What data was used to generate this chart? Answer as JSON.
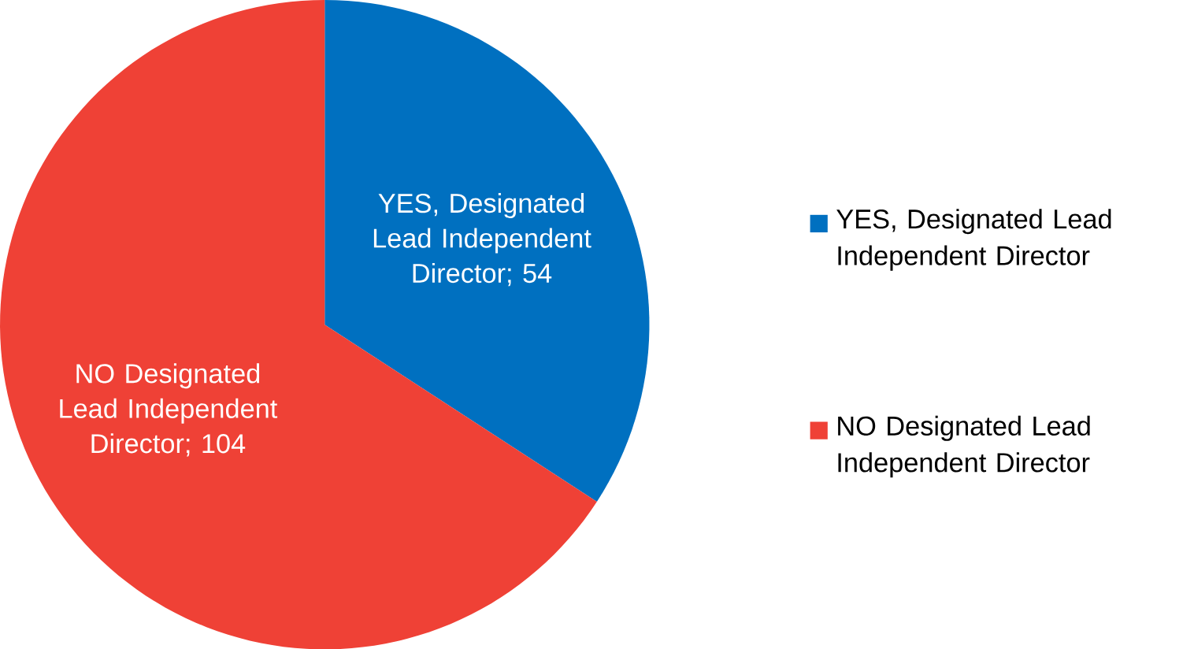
{
  "chart_data": {
    "type": "pie",
    "categories": [
      "YES, Designated Lead Independent Director",
      "NO Designated Lead Independent Director"
    ],
    "values": [
      54,
      104
    ],
    "colors": [
      "#0070c0",
      "#ef4136"
    ],
    "value_labels": [
      "YES, Designated Lead Independent Director; 54",
      "NO Designated Lead Independent Director; 104"
    ],
    "legend": "right"
  }
}
